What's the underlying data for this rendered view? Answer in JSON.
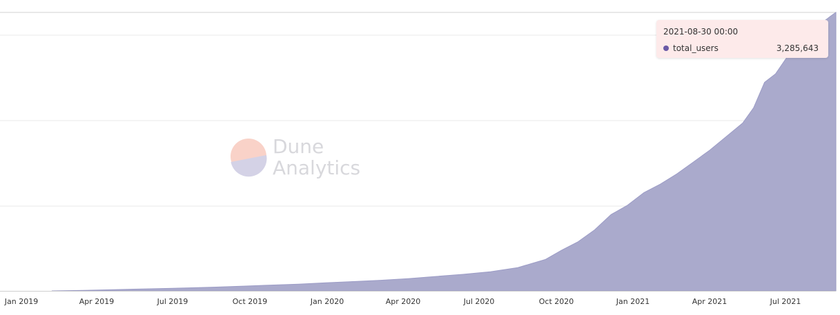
{
  "colors": {
    "area_fill": "#aaaacc",
    "area_stroke": "#9c9cc6",
    "grid": "#e8e8e8",
    "axis": "#cfcfcf",
    "tooltip_bg": "#fdeaea",
    "tooltip_dot": "#6a5aa6",
    "watermark_peach": "#f9d2c8",
    "watermark_lavender": "#d4d2e6"
  },
  "watermark": {
    "line1": "Dune",
    "line2": "Analytics"
  },
  "tooltip": {
    "date": "2021-08-30 00:00",
    "series_name": "total_users",
    "value": "3,285,643"
  },
  "chart_data": {
    "type": "area",
    "ylabel": "",
    "xlabel": "",
    "y_ticks_labeled": false,
    "ylim": [
      0,
      3285643
    ],
    "grid": true,
    "x_tick_labels": [
      "Jan 2019",
      "Apr 2019",
      "Jul 2019",
      "Oct 2019",
      "Jan 2020",
      "Apr 2020",
      "Jul 2020",
      "Oct 2020",
      "Jan 2021",
      "Apr 2021",
      "Jul 2021"
    ],
    "series": [
      {
        "name": "total_users",
        "x": [
          "2018-12-03",
          "2019-01-07",
          "2019-02-11",
          "2019-03-18",
          "2019-04-22",
          "2019-05-27",
          "2019-07-01",
          "2019-08-05",
          "2019-09-09",
          "2019-10-14",
          "2019-11-18",
          "2019-12-23",
          "2020-01-27",
          "2020-03-02",
          "2020-04-06",
          "2020-05-11",
          "2020-06-15",
          "2020-07-20",
          "2020-08-24",
          "2020-09-14",
          "2020-10-05",
          "2020-10-26",
          "2020-11-16",
          "2020-12-07",
          "2020-12-28",
          "2021-01-18",
          "2021-02-08",
          "2021-03-01",
          "2021-03-22",
          "2021-04-12",
          "2021-05-03",
          "2021-05-17",
          "2021-05-31",
          "2021-06-14",
          "2021-06-28",
          "2021-07-12",
          "2021-07-26",
          "2021-08-09",
          "2021-08-23",
          "2021-08-30"
        ],
        "values": [
          0,
          5000,
          12000,
          20000,
          28000,
          36000,
          45000,
          56000,
          68000,
          80000,
          95000,
          110000,
          125000,
          145000,
          170000,
          195000,
          225000,
          275000,
          370000,
          480000,
          580000,
          720000,
          900000,
          1010000,
          1160000,
          1260000,
          1380000,
          1520000,
          1660000,
          1820000,
          1980000,
          2160000,
          2460000,
          2560000,
          2750000,
          2890000,
          3040000,
          3140000,
          3240000,
          3285643
        ]
      }
    ]
  }
}
